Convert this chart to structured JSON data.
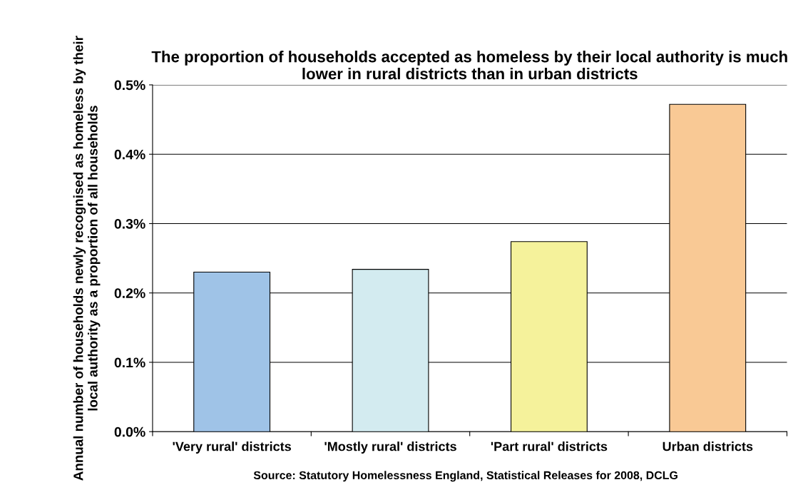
{
  "chart_data": {
    "type": "bar",
    "title": "The proportion of households accepted as homeless by their local authority is much lower in rural districts than in urban districts",
    "ylabel": "Annual number of households newly recognised as homeless by their local authority as a proportion of all households",
    "categories": [
      "'Very rural' districts",
      "'Mostly rural' districts",
      "'Part rural' districts",
      "Urban districts"
    ],
    "values": [
      0.23,
      0.234,
      0.274,
      0.472
    ],
    "colors": [
      "#9fc3e7",
      "#d3ebf0",
      "#f5f29b",
      "#f9c995"
    ],
    "ylim": [
      0,
      0.5
    ],
    "yticks": [
      {
        "value": 0,
        "label": "0.0%"
      },
      {
        "value": 0.1,
        "label": "0.1%"
      },
      {
        "value": 0.2,
        "label": "0.2%"
      },
      {
        "value": 0.3,
        "label": "0.3%"
      },
      {
        "value": 0.4,
        "label": "0.4%"
      },
      {
        "value": 0.5,
        "label": "0.5%"
      }
    ],
    "grid": "y",
    "annotations": [
      "Source: Statutory Homelessness England, Statistical Releases for 2008, DCLG"
    ]
  }
}
